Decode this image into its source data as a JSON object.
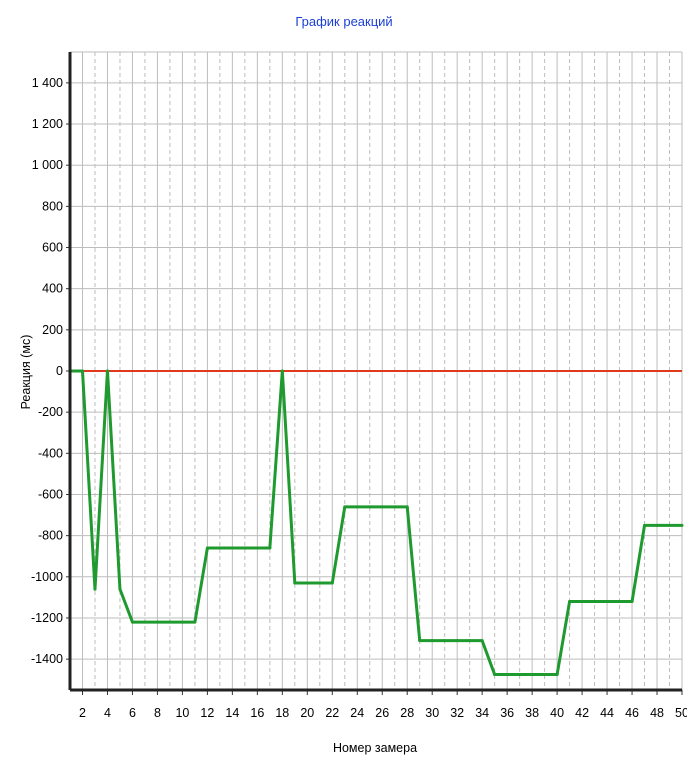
{
  "chart_data": {
    "type": "line",
    "title": "График реакций",
    "xlabel": "Номер замера",
    "ylabel": "Реакция (мс)",
    "xlim": [
      1,
      50
    ],
    "ylim": [
      -1550,
      1550
    ],
    "x_ticks": [
      2,
      4,
      6,
      8,
      10,
      12,
      14,
      16,
      18,
      20,
      22,
      24,
      26,
      28,
      30,
      32,
      34,
      36,
      38,
      40,
      42,
      44,
      46,
      48,
      50
    ],
    "y_ticks": [
      1400,
      1200,
      1000,
      800,
      600,
      400,
      200,
      0,
      -200,
      -400,
      -600,
      -800,
      -1000,
      -1200,
      -1400
    ],
    "y_tick_labels": [
      "1 400",
      "1 200",
      "1 000",
      "800",
      "600",
      "400",
      "200",
      "0",
      "-200",
      "-400",
      "-600",
      "-800",
      "-1000",
      "-1200",
      "-1400"
    ],
    "grid": true,
    "colors": {
      "series": "#1f9a2e",
      "baseline": "#e03a1e",
      "title": "#1a3fd6",
      "grid": "#bdbdbd"
    },
    "baseline": {
      "y": 0
    },
    "series": [
      {
        "x": [
          1,
          2,
          3,
          4,
          5,
          6,
          7,
          8,
          9,
          10,
          11,
          12,
          13,
          14,
          15,
          16,
          17,
          18,
          19,
          20,
          21,
          22,
          23,
          24,
          25,
          26,
          27,
          28,
          29,
          30,
          31,
          32,
          33,
          34,
          35,
          36,
          37,
          38,
          39,
          40,
          41,
          42,
          43,
          44,
          45,
          46,
          47,
          48,
          49,
          50
        ],
        "y": [
          0,
          0,
          -1060,
          0,
          -1060,
          -1220,
          -1220,
          -1220,
          -1220,
          -1220,
          -1220,
          -860,
          -860,
          -860,
          -860,
          -860,
          -860,
          0,
          -1030,
          -1030,
          -1030,
          -1030,
          -660,
          -660,
          -660,
          -660,
          -660,
          -660,
          -1310,
          -1310,
          -1310,
          -1310,
          -1310,
          -1310,
          -1475,
          -1475,
          -1475,
          -1475,
          -1475,
          -1475,
          -1120,
          -1120,
          -1120,
          -1120,
          -1120,
          -1120,
          -750,
          -750,
          -750,
          -750
        ]
      }
    ]
  }
}
